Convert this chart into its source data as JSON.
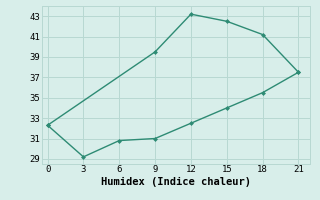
{
  "upper_x": [
    0,
    9,
    12,
    15,
    18,
    21
  ],
  "upper_y": [
    32.3,
    39.5,
    43.2,
    42.5,
    41.2,
    37.5
  ],
  "lower_x": [
    0,
    3,
    6,
    9,
    12,
    15,
    18,
    21
  ],
  "lower_y": [
    32.3,
    29.2,
    30.8,
    31.0,
    32.5,
    34.0,
    35.5,
    37.5
  ],
  "line_color": "#2e8b74",
  "bg_color": "#d8eeea",
  "grid_color": "#b8d8d2",
  "xlabel": "Humidex (Indice chaleur)",
  "xlim": [
    -0.5,
    22
  ],
  "ylim": [
    28.5,
    44.0
  ],
  "xticks": [
    0,
    3,
    6,
    9,
    12,
    15,
    18,
    21
  ],
  "yticks": [
    29,
    31,
    33,
    35,
    37,
    39,
    41,
    43
  ],
  "xlabel_fontsize": 7.5,
  "tick_fontsize": 6.5
}
